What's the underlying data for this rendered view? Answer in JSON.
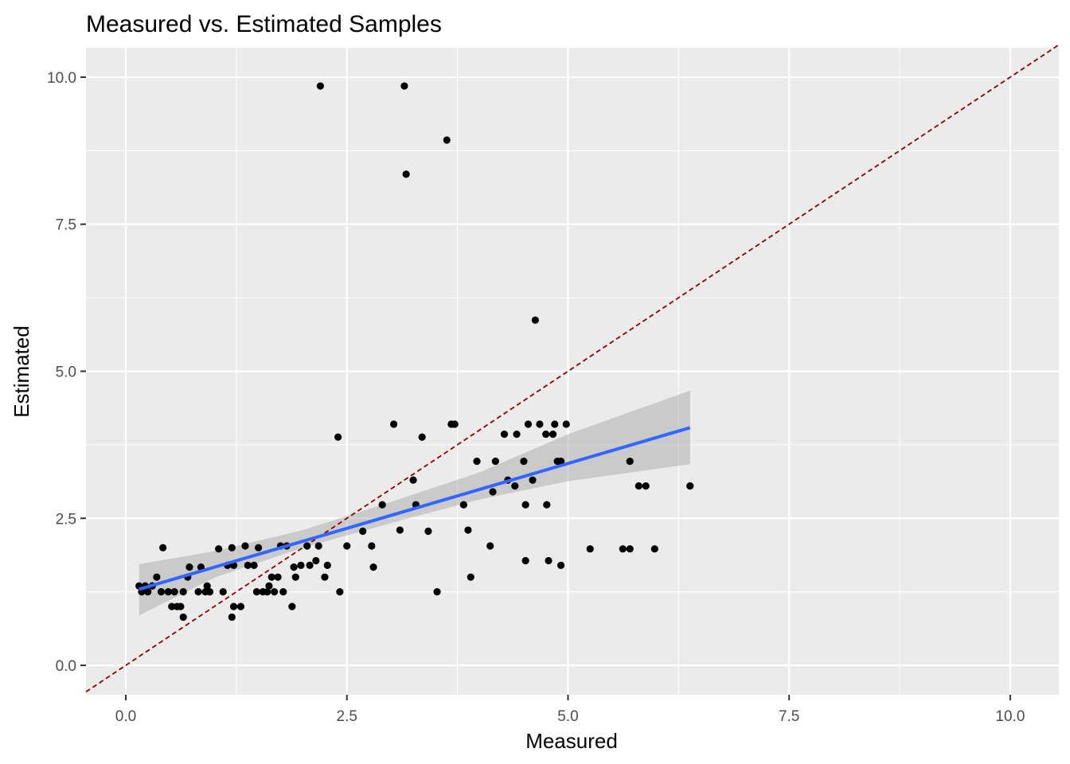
{
  "chart_data": {
    "type": "scatter",
    "title": "Measured vs. Estimated Samples",
    "xlabel": "Measured",
    "ylabel": "Estimated",
    "xlim": [
      -0.45,
      10.55
    ],
    "ylim": [
      -0.5,
      10.5
    ],
    "xticks": [
      {
        "value": 0,
        "label": "0.0"
      },
      {
        "value": 2.5,
        "label": "2.5"
      },
      {
        "value": 5,
        "label": "5.0"
      },
      {
        "value": 7.5,
        "label": "7.5"
      },
      {
        "value": 10,
        "label": "10.0"
      }
    ],
    "yticks": [
      {
        "value": 0,
        "label": "0.0"
      },
      {
        "value": 2.5,
        "label": "2.5"
      },
      {
        "value": 5,
        "label": "5.0"
      },
      {
        "value": 7.5,
        "label": "7.5"
      },
      {
        "value": 10,
        "label": "10.0"
      }
    ],
    "grid": true,
    "colors": {
      "panel": "#ebebeb",
      "grid": "#ffffff",
      "points": "#000000",
      "fit_line": "#3366ff",
      "confidence_band": "#999999",
      "reference_line": "#8b0000"
    },
    "reference_line": {
      "slope": 1,
      "intercept": 0,
      "style": "dashed"
    },
    "fit": {
      "x_range": [
        0.15,
        6.38
      ],
      "intercept": 1.227,
      "slope": 0.441,
      "band": [
        {
          "x": 0.15,
          "lower": 0.85,
          "upper": 1.72
        },
        {
          "x": 1.0,
          "lower": 1.49,
          "upper": 1.94
        },
        {
          "x": 2.0,
          "lower": 2.0,
          "upper": 2.3
        },
        {
          "x": 3.0,
          "lower": 2.42,
          "upper": 2.78
        },
        {
          "x": 4.0,
          "lower": 2.82,
          "upper": 3.28
        },
        {
          "x": 5.0,
          "lower": 3.13,
          "upper": 3.93
        },
        {
          "x": 6.38,
          "lower": 3.42,
          "upper": 4.67
        }
      ]
    },
    "points": [
      [
        0.15,
        1.35
      ],
      [
        0.18,
        1.25
      ],
      [
        0.22,
        1.35
      ],
      [
        0.25,
        1.25
      ],
      [
        0.3,
        1.35
      ],
      [
        0.35,
        1.5
      ],
      [
        0.4,
        1.25
      ],
      [
        0.42,
        2.0
      ],
      [
        0.48,
        1.25
      ],
      [
        0.52,
        1.0
      ],
      [
        0.55,
        1.25
      ],
      [
        0.58,
        1.0
      ],
      [
        0.62,
        1.0
      ],
      [
        0.65,
        0.82
      ],
      [
        0.65,
        1.25
      ],
      [
        0.7,
        1.5
      ],
      [
        0.72,
        1.67
      ],
      [
        0.82,
        1.25
      ],
      [
        0.85,
        1.67
      ],
      [
        0.9,
        1.25
      ],
      [
        0.92,
        1.35
      ],
      [
        0.95,
        1.25
      ],
      [
        1.05,
        1.98
      ],
      [
        1.1,
        1.25
      ],
      [
        1.15,
        1.7
      ],
      [
        1.2,
        2.0
      ],
      [
        1.22,
        1.7
      ],
      [
        1.2,
        0.82
      ],
      [
        1.22,
        1.0
      ],
      [
        1.3,
        1.0
      ],
      [
        1.35,
        2.03
      ],
      [
        1.38,
        1.7
      ],
      [
        1.45,
        1.7
      ],
      [
        1.48,
        1.25
      ],
      [
        1.5,
        2.0
      ],
      [
        1.55,
        1.25
      ],
      [
        1.6,
        1.25
      ],
      [
        1.62,
        1.35
      ],
      [
        1.65,
        1.5
      ],
      [
        1.68,
        1.25
      ],
      [
        1.72,
        1.5
      ],
      [
        1.75,
        2.03
      ],
      [
        1.78,
        1.25
      ],
      [
        1.82,
        2.03
      ],
      [
        1.88,
        1.0
      ],
      [
        1.9,
        1.67
      ],
      [
        1.92,
        1.5
      ],
      [
        1.98,
        1.7
      ],
      [
        2.05,
        2.03
      ],
      [
        2.08,
        1.7
      ],
      [
        2.15,
        1.78
      ],
      [
        2.18,
        2.03
      ],
      [
        2.25,
        1.5
      ],
      [
        2.28,
        1.7
      ],
      [
        2.2,
        9.85
      ],
      [
        2.4,
        3.88
      ],
      [
        2.42,
        1.25
      ],
      [
        2.5,
        2.03
      ],
      [
        2.68,
        2.28
      ],
      [
        2.78,
        2.03
      ],
      [
        2.8,
        1.67
      ],
      [
        2.9,
        2.73
      ],
      [
        3.03,
        4.1
      ],
      [
        3.1,
        2.3
      ],
      [
        3.15,
        9.85
      ],
      [
        3.17,
        8.35
      ],
      [
        3.25,
        3.15
      ],
      [
        3.28,
        2.73
      ],
      [
        3.35,
        3.88
      ],
      [
        3.42,
        2.28
      ],
      [
        3.52,
        1.25
      ],
      [
        3.63,
        8.93
      ],
      [
        3.68,
        4.1
      ],
      [
        3.72,
        4.1
      ],
      [
        3.82,
        2.73
      ],
      [
        3.87,
        2.3
      ],
      [
        3.9,
        1.5
      ],
      [
        3.97,
        3.47
      ],
      [
        4.12,
        2.03
      ],
      [
        4.15,
        2.95
      ],
      [
        4.18,
        3.47
      ],
      [
        4.28,
        3.93
      ],
      [
        4.32,
        3.15
      ],
      [
        4.4,
        3.05
      ],
      [
        4.42,
        3.93
      ],
      [
        4.52,
        2.73
      ],
      [
        4.5,
        3.47
      ],
      [
        4.52,
        1.78
      ],
      [
        4.55,
        4.1
      ],
      [
        4.6,
        3.15
      ],
      [
        4.63,
        5.87
      ],
      [
        4.68,
        4.1
      ],
      [
        4.75,
        3.93
      ],
      [
        4.78,
        1.78
      ],
      [
        4.76,
        2.73
      ],
      [
        4.83,
        3.93
      ],
      [
        4.85,
        4.1
      ],
      [
        4.88,
        3.47
      ],
      [
        4.92,
        1.7
      ],
      [
        4.92,
        3.47
      ],
      [
        4.98,
        4.1
      ],
      [
        5.25,
        1.98
      ],
      [
        5.62,
        1.98
      ],
      [
        5.7,
        1.98
      ],
      [
        5.7,
        3.47
      ],
      [
        5.8,
        3.05
      ],
      [
        5.88,
        3.05
      ],
      [
        5.98,
        1.98
      ],
      [
        6.38,
        3.05
      ]
    ]
  }
}
